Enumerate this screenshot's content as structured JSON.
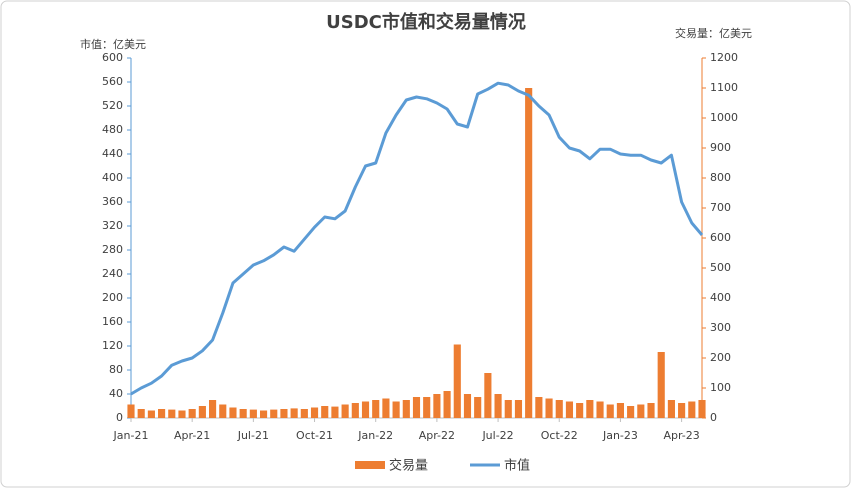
{
  "chart_data": {
    "type": "combo",
    "title": "USDC市值和交易量情况",
    "y_label": "市值：亿美元",
    "y2_label": "交易量：亿美元",
    "categories": [
      "Jan-21",
      null,
      null,
      null,
      null,
      null,
      "Apr-21",
      null,
      null,
      null,
      null,
      null,
      "Jul-21",
      null,
      null,
      null,
      null,
      null,
      "Oct-21",
      null,
      null,
      null,
      null,
      null,
      "Jan-22",
      null,
      null,
      null,
      null,
      null,
      "Apr-22",
      null,
      null,
      null,
      null,
      null,
      "Jul-22",
      null,
      null,
      null,
      null,
      null,
      "Oct-22",
      null,
      null,
      null,
      null,
      null,
      "Jan-23",
      null,
      null,
      null,
      null,
      null,
      "Apr-23",
      null,
      null
    ],
    "series": [
      {
        "name": "交易量",
        "type": "bar",
        "axis": "y2",
        "color": "#ed7d31",
        "values": [
          45,
          30,
          25,
          30,
          28,
          25,
          30,
          40,
          60,
          45,
          35,
          30,
          28,
          25,
          28,
          30,
          32,
          30,
          35,
          40,
          38,
          45,
          50,
          55,
          60,
          65,
          55,
          60,
          70,
          70,
          80,
          90,
          245,
          80,
          70,
          150,
          80,
          60,
          60,
          1100,
          70,
          65,
          60,
          55,
          50,
          60,
          55,
          45,
          50,
          40,
          45,
          50,
          220,
          60,
          50,
          55,
          60
        ]
      },
      {
        "name": "市值",
        "type": "line",
        "color": "#5b9bd5",
        "values": [
          40,
          50,
          58,
          70,
          88,
          95,
          100,
          112,
          130,
          175,
          225,
          240,
          255,
          262,
          272,
          285,
          278,
          298,
          318,
          335,
          332,
          345,
          385,
          420,
          425,
          475,
          505,
          530,
          535,
          532,
          525,
          515,
          490,
          485,
          540,
          548,
          558,
          555,
          545,
          538,
          520,
          505,
          468,
          450,
          445,
          432,
          448,
          448,
          440,
          438,
          438,
          430,
          425,
          438,
          360,
          325,
          305
        ]
      }
    ],
    "ylim": [
      0,
      600
    ],
    "yticks": [
      0,
      40,
      80,
      120,
      160,
      200,
      240,
      280,
      320,
      360,
      400,
      440,
      480,
      520,
      560,
      600
    ],
    "y2lim": [
      0,
      1200
    ],
    "y2ticks": [
      0,
      100,
      200,
      300,
      400,
      500,
      600,
      700,
      800,
      900,
      1000,
      1100,
      1200
    ],
    "legend": "bottom"
  }
}
